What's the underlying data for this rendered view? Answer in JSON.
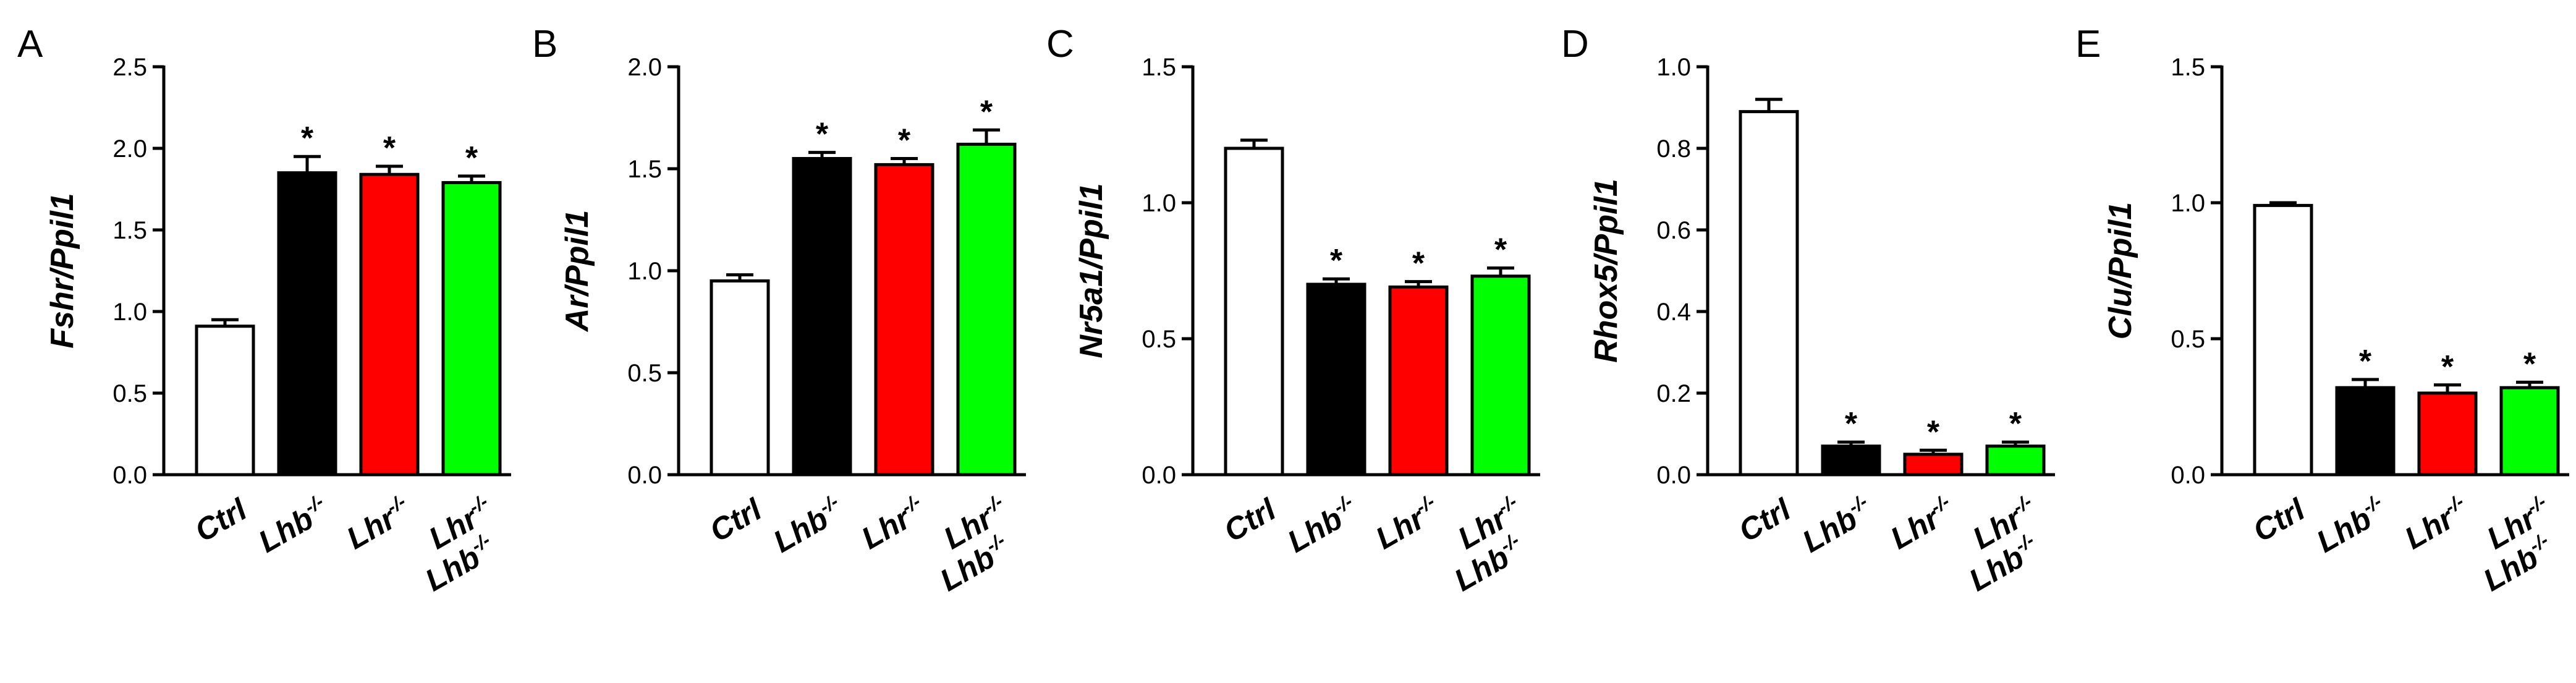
{
  "colors": {
    "ctrl": "#ffffff",
    "lhb": "#000000",
    "lhr": "#ff0000",
    "double": "#00ff00",
    "axis": "#000000"
  },
  "categories": [
    {
      "id": "ctrl",
      "parts": [
        {
          "t": "Ctrl"
        }
      ]
    },
    {
      "id": "lhb",
      "parts": [
        {
          "t": "Lhb"
        },
        {
          "t": "-/-",
          "sup": true
        }
      ]
    },
    {
      "id": "lhr",
      "parts": [
        {
          "t": "Lhr"
        },
        {
          "t": "-/-",
          "sup": true
        }
      ]
    },
    {
      "id": "double",
      "lines": [
        [
          {
            "t": "Lhr"
          },
          {
            "t": "-/-",
            "sup": true
          }
        ],
        [
          {
            "t": "Lhb"
          },
          {
            "t": "-/-",
            "sup": true
          }
        ]
      ]
    }
  ],
  "chart_data": [
    {
      "panel": "A",
      "type": "bar",
      "ylabel": "Fshr/Ppil1",
      "ylim": [
        0,
        2.5
      ],
      "ticks": [
        "0.0",
        "0.5",
        "1.0",
        "1.5",
        "2.0",
        "2.5"
      ],
      "categories": [
        "Ctrl",
        "Lhb-/-",
        "Lhr-/-",
        "Lhb-/- Lhr-/-"
      ],
      "values": [
        0.91,
        1.85,
        1.84,
        1.79
      ],
      "errors": [
        0.04,
        0.1,
        0.05,
        0.04
      ],
      "significance": [
        "",
        "*",
        "*",
        "*"
      ]
    },
    {
      "panel": "B",
      "type": "bar",
      "ylabel": "Ar/Ppil1",
      "ylim": [
        0,
        2.0
      ],
      "ticks": [
        "0.0",
        "0.5",
        "1.0",
        "1.5",
        "2.0"
      ],
      "categories": [
        "Ctrl",
        "Lhb-/-",
        "Lhr-/-",
        "Lhb-/- Lhr-/-"
      ],
      "values": [
        0.95,
        1.55,
        1.52,
        1.62
      ],
      "errors": [
        0.03,
        0.03,
        0.03,
        0.07
      ],
      "significance": [
        "",
        "*",
        "*",
        "*"
      ]
    },
    {
      "panel": "C",
      "type": "bar",
      "ylabel": "Nr5a1/Ppil1",
      "ylim": [
        0,
        1.5
      ],
      "ticks": [
        "0.0",
        "0.5",
        "1.0",
        "1.5"
      ],
      "categories": [
        "Ctrl",
        "Lhb-/-",
        "Lhr-/-",
        "Lhb-/- Lhr-/-"
      ],
      "values": [
        1.2,
        0.7,
        0.69,
        0.73
      ],
      "errors": [
        0.03,
        0.02,
        0.02,
        0.03
      ],
      "significance": [
        "",
        "*",
        "*",
        "*"
      ]
    },
    {
      "panel": "D",
      "type": "bar",
      "ylabel": "Rhox5/Ppil1",
      "ylim": [
        0,
        1.0
      ],
      "ticks": [
        "0.0",
        "0.2",
        "0.4",
        "0.6",
        "0.8",
        "1.0"
      ],
      "categories": [
        "Ctrl",
        "Lhb-/-",
        "Lhr-/-",
        "Lhb-/- Lhr-/-"
      ],
      "values": [
        0.89,
        0.07,
        0.05,
        0.07
      ],
      "errors": [
        0.03,
        0.01,
        0.01,
        0.01
      ],
      "significance": [
        "",
        "*",
        "*",
        "*"
      ]
    },
    {
      "panel": "E",
      "type": "bar",
      "ylabel": "Clu/Ppil1",
      "ylim": [
        0,
        1.5
      ],
      "ticks": [
        "0.0",
        "0.5",
        "1.0",
        "1.5"
      ],
      "categories": [
        "Ctrl",
        "Lhb-/-",
        "Lhr-/-",
        "Lhb-/- Lhr-/-"
      ],
      "values": [
        0.99,
        0.32,
        0.3,
        0.32
      ],
      "errors": [
        0.01,
        0.03,
        0.03,
        0.02
      ],
      "significance": [
        "",
        "*",
        "*",
        "*"
      ]
    }
  ]
}
